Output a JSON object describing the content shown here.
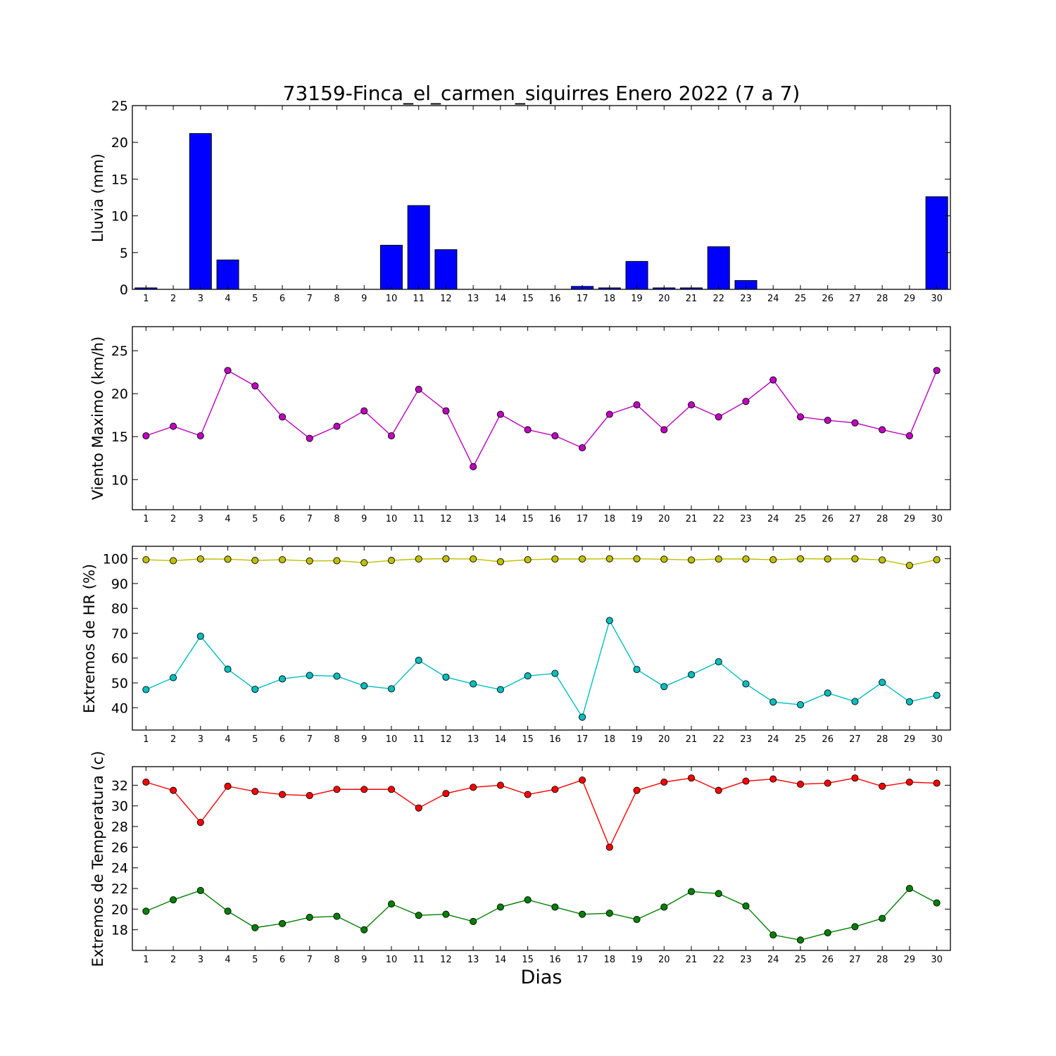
{
  "chart_data": [
    {
      "type": "bar",
      "title": "73159-Finca_el_carmen_siquirres Enero 2022  (7 a 7)",
      "xlabel": "",
      "ylabel": "Lluvia (mm)",
      "ylim": [
        0,
        25
      ],
      "yticks": [
        0,
        5,
        10,
        15,
        20,
        25
      ],
      "categories": [
        "1",
        "2",
        "3",
        "4",
        "5",
        "6",
        "7",
        "8",
        "9",
        "10",
        "11",
        "12",
        "13",
        "14",
        "15",
        "16",
        "17",
        "18",
        "19",
        "20",
        "21",
        "22",
        "23",
        "24",
        "25",
        "26",
        "27",
        "28",
        "29",
        "30"
      ],
      "series": [
        {
          "color": "#0000ff",
          "values": [
            0.2,
            0,
            21.2,
            4.0,
            0,
            0,
            0,
            0,
            0,
            6.0,
            11.4,
            5.4,
            0,
            0,
            0,
            0,
            0.4,
            0.2,
            3.8,
            0.2,
            0.2,
            5.8,
            1.2,
            0,
            0,
            0,
            0,
            0,
            0,
            12.6
          ]
        }
      ],
      "grid": false
    },
    {
      "type": "line",
      "xlabel": "",
      "ylabel": "Viento Maximo (km/h)",
      "ylim": [
        6.5,
        27.8
      ],
      "yticks": [
        10,
        15,
        20,
        25
      ],
      "x": [
        1,
        2,
        3,
        4,
        5,
        6,
        7,
        8,
        9,
        10,
        11,
        12,
        13,
        14,
        15,
        16,
        17,
        18,
        19,
        20,
        21,
        22,
        23,
        24,
        25,
        26,
        27,
        28,
        29,
        30
      ],
      "series": [
        {
          "color": "#bf00bf",
          "values": [
            15.1,
            16.2,
            15.1,
            22.7,
            20.9,
            17.3,
            14.8,
            16.2,
            18.0,
            15.1,
            20.5,
            18.0,
            11.5,
            17.6,
            15.8,
            15.1,
            13.7,
            17.6,
            18.7,
            15.8,
            18.7,
            17.3,
            19.1,
            21.6,
            17.3,
            16.9,
            16.6,
            15.8,
            15.1,
            22.7
          ]
        }
      ],
      "grid": false
    },
    {
      "type": "line",
      "xlabel": "",
      "ylabel": "Extremos de HR (%)",
      "ylim": [
        31,
        105
      ],
      "yticks": [
        40,
        50,
        60,
        70,
        80,
        90,
        100
      ],
      "x": [
        1,
        2,
        3,
        4,
        5,
        6,
        7,
        8,
        9,
        10,
        11,
        12,
        13,
        14,
        15,
        16,
        17,
        18,
        19,
        20,
        21,
        22,
        23,
        24,
        25,
        26,
        27,
        28,
        29,
        30
      ],
      "series": [
        {
          "color": "#bfbf00",
          "values": [
            99.6,
            99.2,
            99.9,
            99.8,
            99.3,
            99.6,
            99.1,
            99.2,
            98.4,
            99.3,
            99.9,
            100.0,
            99.9,
            98.8,
            99.6,
            99.9,
            99.9,
            100.0,
            100.0,
            99.8,
            99.5,
            99.9,
            99.9,
            99.6,
            100.0,
            99.9,
            100.0,
            99.5,
            97.3,
            99.6
          ]
        },
        {
          "color": "#00bfbf",
          "values": [
            47.3,
            52.1,
            68.8,
            55.5,
            47.4,
            51.6,
            53.0,
            52.7,
            48.8,
            47.6,
            59.1,
            52.3,
            49.6,
            47.3,
            52.8,
            53.8,
            36.2,
            75.1,
            55.4,
            48.5,
            53.3,
            58.5,
            49.6,
            42.3,
            41.2,
            45.9,
            42.5,
            50.2,
            42.4,
            45.0
          ]
        }
      ],
      "grid": false
    },
    {
      "type": "line",
      "xlabel": "Dias",
      "ylabel": "Extremos de Temperatura (c)",
      "ylim": [
        16,
        33.8
      ],
      "yticks": [
        18,
        20,
        22,
        24,
        26,
        28,
        30,
        32
      ],
      "x": [
        1,
        2,
        3,
        4,
        5,
        6,
        7,
        8,
        9,
        10,
        11,
        12,
        13,
        14,
        15,
        16,
        17,
        18,
        19,
        20,
        21,
        22,
        23,
        24,
        25,
        26,
        27,
        28,
        29,
        30
      ],
      "series": [
        {
          "color": "#ff0000",
          "values": [
            32.3,
            31.5,
            28.4,
            31.9,
            31.4,
            31.1,
            31.0,
            31.6,
            31.6,
            31.6,
            29.8,
            31.2,
            31.8,
            32.0,
            31.1,
            31.6,
            32.5,
            26.0,
            31.5,
            32.3,
            32.7,
            31.5,
            32.4,
            32.6,
            32.1,
            32.2,
            32.7,
            31.9,
            32.3,
            32.2
          ]
        },
        {
          "color": "#008000",
          "values": [
            19.8,
            20.9,
            21.8,
            19.8,
            18.2,
            18.6,
            19.2,
            19.3,
            18.0,
            20.5,
            19.4,
            19.5,
            18.8,
            20.2,
            20.9,
            20.2,
            19.5,
            19.6,
            19.0,
            20.2,
            21.7,
            21.5,
            20.3,
            17.5,
            17.0,
            17.7,
            18.3,
            19.1,
            22.0,
            20.6
          ]
        }
      ],
      "grid": false
    }
  ]
}
